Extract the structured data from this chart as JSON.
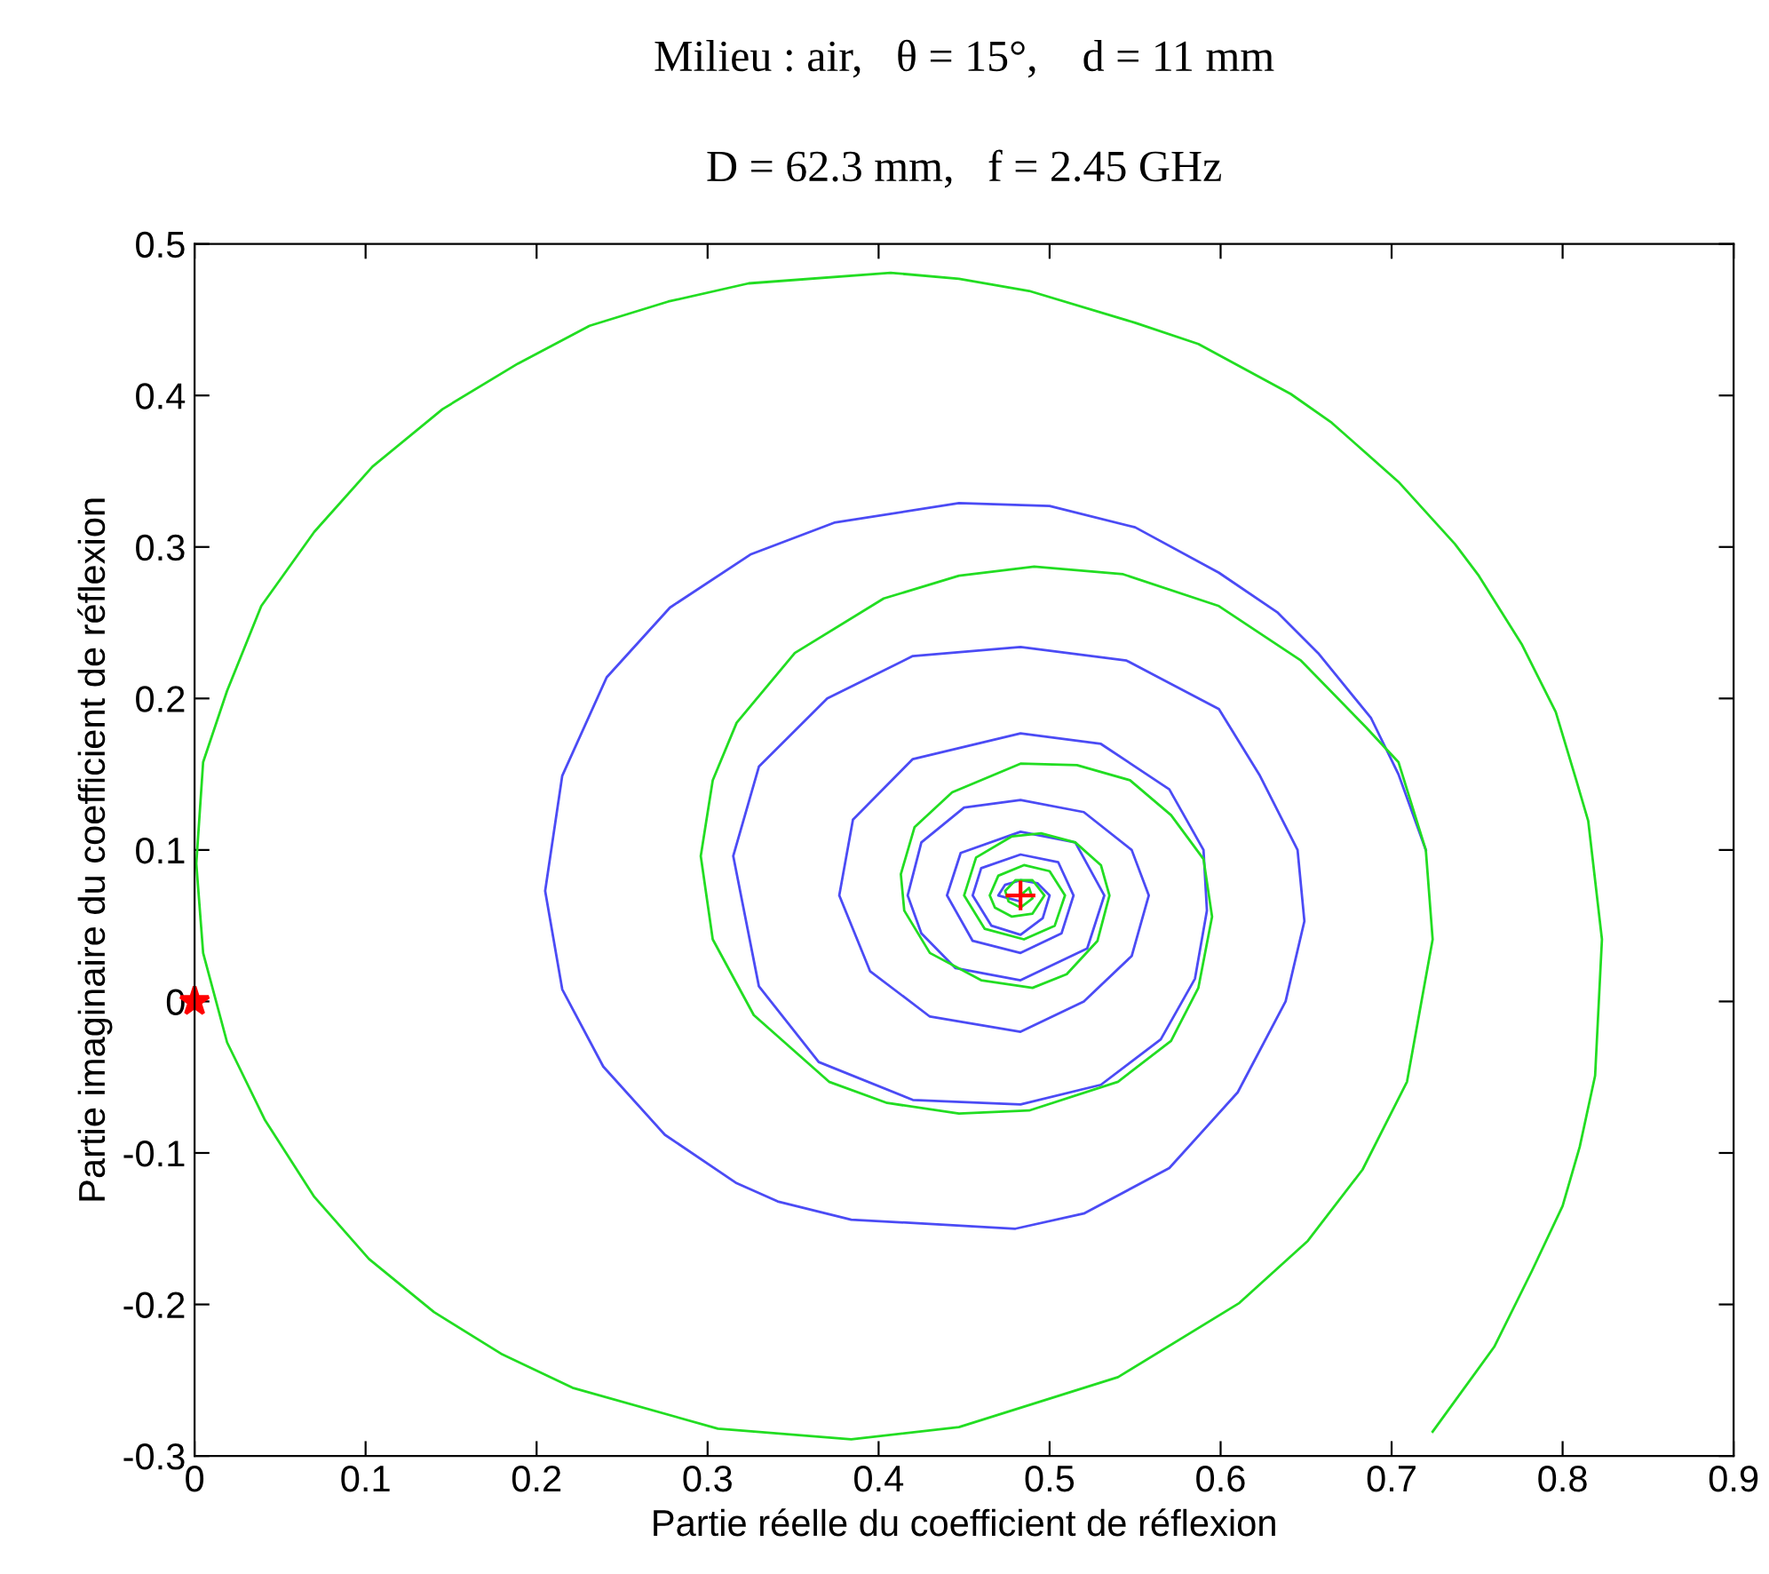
{
  "chart_data": {
    "type": "line",
    "title": "Milieu : air,   θ = 15°,    d = 11 mm",
    "subtitle": "D = 62.3 mm,   f = 2.45 GHz",
    "xlabel": "Partie réelle du coefficient de réflexion",
    "ylabel": "Partie imaginaire du coefficient de réflexion",
    "xlim": [
      0,
      0.9
    ],
    "ylim": [
      -0.3,
      0.5
    ],
    "xticks": [
      0,
      0.1,
      0.2,
      0.3,
      0.4,
      0.5,
      0.6,
      0.7,
      0.8,
      0.9
    ],
    "yticks": [
      -0.3,
      -0.2,
      -0.1,
      0,
      0.1,
      0.2,
      0.3,
      0.4,
      0.5
    ],
    "grid": false,
    "legend": false,
    "series": [
      {
        "color": "#4b4bf5",
        "marker": "none",
        "line_style": "solid",
        "x": [
          0.483,
          0.47,
          0.474,
          0.483,
          0.493,
          0.5,
          0.496,
          0.483,
          0.466,
          0.455,
          0.46,
          0.483,
          0.505,
          0.514,
          0.507,
          0.483,
          0.455,
          0.44,
          0.448,
          0.483,
          0.515,
          0.532,
          0.522,
          0.483,
          0.445,
          0.425,
          0.417,
          0.425,
          0.45,
          0.483,
          0.52,
          0.548,
          0.558,
          0.548,
          0.52,
          0.483,
          0.43,
          0.395,
          0.377,
          0.385,
          0.42,
          0.483,
          0.53,
          0.57,
          0.59,
          0.592,
          0.585,
          0.565,
          0.53,
          0.483,
          0.42,
          0.365,
          0.33,
          0.315,
          0.33,
          0.37,
          0.42,
          0.483,
          0.545,
          0.599,
          0.623,
          0.645,
          0.649,
          0.638,
          0.61,
          0.57,
          0.52,
          0.48,
          0.384,
          0.341,
          0.317,
          0.275,
          0.239,
          0.215,
          0.205,
          0.215,
          0.241,
          0.278,
          0.325,
          0.374,
          0.447,
          0.5,
          0.55,
          0.599,
          0.633,
          0.657,
          0.688,
          0.704,
          0.72
        ],
        "values": [
          0.066,
          0.07,
          0.077,
          0.08,
          0.078,
          0.07,
          0.055,
          0.044,
          0.05,
          0.07,
          0.088,
          0.097,
          0.092,
          0.07,
          0.045,
          0.032,
          0.04,
          0.07,
          0.098,
          0.112,
          0.105,
          0.07,
          0.035,
          0.014,
          0.022,
          0.045,
          0.07,
          0.105,
          0.128,
          0.133,
          0.125,
          0.1,
          0.07,
          0.03,
          0.0,
          -0.02,
          -0.01,
          0.02,
          0.07,
          0.12,
          0.16,
          0.177,
          0.17,
          0.14,
          0.1,
          0.06,
          0.015,
          -0.025,
          -0.055,
          -0.068,
          -0.065,
          -0.04,
          0.01,
          0.096,
          0.155,
          0.2,
          0.228,
          0.234,
          0.225,
          0.193,
          0.149,
          0.1,
          0.053,
          0.0,
          -0.06,
          -0.11,
          -0.14,
          -0.15,
          -0.144,
          -0.132,
          -0.12,
          -0.088,
          -0.043,
          0.008,
          0.073,
          0.149,
          0.214,
          0.26,
          0.295,
          0.316,
          0.329,
          0.327,
          0.313,
          0.283,
          0.257,
          0.23,
          0.187,
          0.15,
          0.1
        ]
      },
      {
        "color": "#22dd22",
        "marker": "none",
        "line_style": "solid",
        "x": [
          0.483,
          0.488,
          0.49,
          0.483,
          0.476,
          0.474,
          0.48,
          0.49,
          0.497,
          0.49,
          0.478,
          0.468,
          0.465,
          0.47,
          0.485,
          0.5,
          0.509,
          0.503,
          0.485,
          0.462,
          0.45,
          0.457,
          0.478,
          0.495,
          0.515,
          0.53,
          0.535,
          0.528,
          0.51,
          0.49,
          0.46,
          0.43,
          0.415,
          0.413,
          0.421,
          0.443,
          0.483,
          0.516,
          0.547,
          0.571,
          0.59,
          0.595,
          0.587,
          0.571,
          0.54,
          0.488,
          0.447,
          0.405,
          0.371,
          0.327,
          0.303,
          0.296,
          0.303,
          0.317,
          0.351,
          0.403,
          0.447,
          0.491,
          0.543,
          0.599,
          0.647,
          0.685,
          0.704,
          0.72,
          0.724,
          0.709,
          0.683,
          0.651,
          0.611,
          0.54,
          0.447,
          0.384,
          0.306,
          0.221,
          0.18,
          0.14,
          0.102,
          0.07,
          0.041,
          0.019,
          0.005,
          0.001,
          0.005,
          0.019,
          0.039,
          0.07,
          0.104,
          0.145,
          0.189,
          0.231,
          0.277,
          0.324,
          0.407,
          0.447,
          0.488,
          0.55,
          0.587,
          0.641,
          0.665,
          0.704,
          0.737,
          0.751,
          0.776,
          0.796,
          0.808,
          0.815,
          0.823,
          0.819,
          0.81,
          0.8,
          0.782,
          0.76,
          0.724
        ],
        "values": [
          0.07,
          0.075,
          0.068,
          0.062,
          0.066,
          0.073,
          0.08,
          0.08,
          0.07,
          0.058,
          0.056,
          0.062,
          0.07,
          0.083,
          0.09,
          0.086,
          0.07,
          0.05,
          0.041,
          0.048,
          0.07,
          0.095,
          0.109,
          0.111,
          0.105,
          0.09,
          0.07,
          0.04,
          0.018,
          0.009,
          0.014,
          0.032,
          0.06,
          0.084,
          0.115,
          0.138,
          0.157,
          0.156,
          0.146,
          0.123,
          0.094,
          0.056,
          0.009,
          -0.026,
          -0.053,
          -0.072,
          -0.074,
          -0.067,
          -0.053,
          -0.009,
          0.041,
          0.096,
          0.146,
          0.184,
          0.23,
          0.266,
          0.281,
          0.287,
          0.282,
          0.261,
          0.225,
          0.181,
          0.158,
          0.1,
          0.041,
          -0.053,
          -0.111,
          -0.158,
          -0.199,
          -0.248,
          -0.281,
          -0.289,
          -0.282,
          -0.255,
          -0.233,
          -0.205,
          -0.17,
          -0.129,
          -0.078,
          -0.027,
          0.032,
          0.091,
          0.158,
          0.205,
          0.261,
          0.31,
          0.353,
          0.391,
          0.421,
          0.446,
          0.462,
          0.474,
          0.481,
          0.477,
          0.469,
          0.448,
          0.434,
          0.401,
          0.382,
          0.343,
          0.302,
          0.281,
          0.236,
          0.191,
          0.146,
          0.119,
          0.041,
          -0.049,
          -0.096,
          -0.135,
          -0.178,
          -0.228,
          -0.284
        ]
      },
      {
        "type": "scatter",
        "color": "#ff0000",
        "marker": "star",
        "x": [
          0
        ],
        "values": [
          0
        ]
      },
      {
        "type": "scatter",
        "color": "#ff0000",
        "marker": "cross",
        "x": [
          0.483
        ],
        "values": [
          0.07
        ]
      }
    ]
  }
}
